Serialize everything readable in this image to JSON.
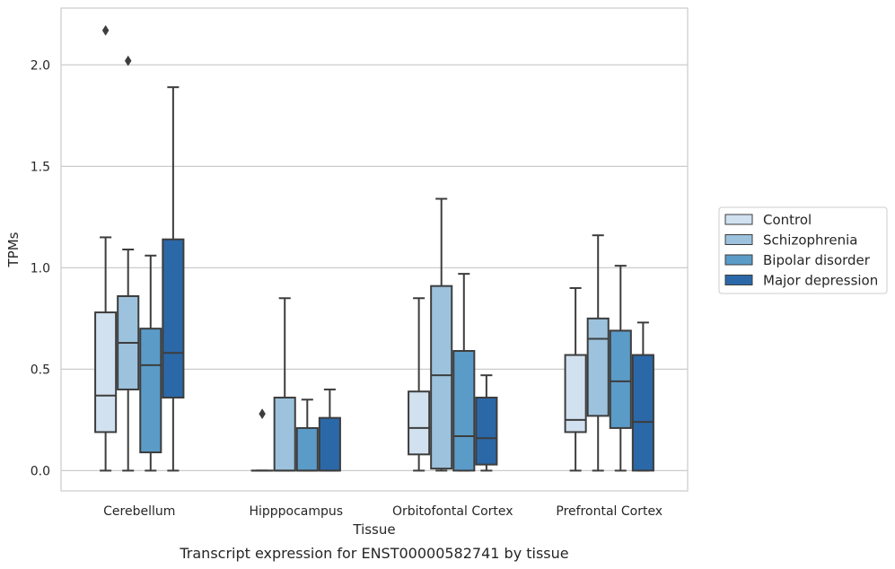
{
  "chart_data": {
    "type": "box",
    "title": "",
    "caption": "Transcript expression for ENST00000582741 by tissue",
    "xlabel": "Tissue",
    "ylabel": "TPMs",
    "ylim": [
      -0.1,
      2.28
    ],
    "yticks": [
      "0.0",
      "0.5",
      "1.0",
      "1.5",
      "2.0"
    ],
    "ytick_values": [
      0.0,
      0.5,
      1.0,
      1.5,
      2.0
    ],
    "grid": "horizontal",
    "legend_position": "right",
    "categories": [
      "Cerebellum",
      "Hipppocampus",
      "Orbitofontal Cortex",
      "Prefrontal Cortex"
    ],
    "series": [
      {
        "name": "Control",
        "color": "#d1e1f0",
        "boxes": [
          {
            "min": 0.0,
            "q1": 0.19,
            "median": 0.37,
            "q3": 0.78,
            "max": 1.15,
            "outliers": [
              2.17
            ]
          },
          {
            "min": 0.0,
            "q1": 0.0,
            "median": 0.0,
            "q3": 0.0,
            "max": 0.0,
            "outliers": [
              0.28
            ]
          },
          {
            "min": 0.0,
            "q1": 0.08,
            "median": 0.21,
            "q3": 0.39,
            "max": 0.85,
            "outliers": []
          },
          {
            "min": 0.0,
            "q1": 0.19,
            "median": 0.25,
            "q3": 0.57,
            "max": 0.9,
            "outliers": []
          }
        ]
      },
      {
        "name": "Schizophrenia",
        "color": "#9cc2dd",
        "boxes": [
          {
            "min": 0.0,
            "q1": 0.4,
            "median": 0.63,
            "q3": 0.86,
            "max": 1.09,
            "outliers": [
              2.02
            ]
          },
          {
            "min": 0.0,
            "q1": 0.0,
            "median": 0.0,
            "q3": 0.36,
            "max": 0.85,
            "outliers": []
          },
          {
            "min": 0.0,
            "q1": 0.01,
            "median": 0.47,
            "q3": 0.91,
            "max": 1.34,
            "outliers": []
          },
          {
            "min": 0.0,
            "q1": 0.27,
            "median": 0.65,
            "q3": 0.75,
            "max": 1.16,
            "outliers": []
          }
        ]
      },
      {
        "name": "Bipolar disorder",
        "color": "#5b9bc8",
        "boxes": [
          {
            "min": 0.0,
            "q1": 0.09,
            "median": 0.52,
            "q3": 0.7,
            "max": 1.06,
            "outliers": []
          },
          {
            "min": 0.0,
            "q1": 0.0,
            "median": 0.0,
            "q3": 0.21,
            "max": 0.35,
            "outliers": []
          },
          {
            "min": 0.0,
            "q1": 0.0,
            "median": 0.17,
            "q3": 0.59,
            "max": 0.97,
            "outliers": []
          },
          {
            "min": 0.0,
            "q1": 0.21,
            "median": 0.44,
            "q3": 0.69,
            "max": 1.01,
            "outliers": []
          }
        ]
      },
      {
        "name": "Major depression",
        "color": "#2b68a8",
        "boxes": [
          {
            "min": 0.0,
            "q1": 0.36,
            "median": 0.58,
            "q3": 1.14,
            "max": 1.89,
            "outliers": []
          },
          {
            "min": 0.0,
            "q1": 0.0,
            "median": 0.0,
            "q3": 0.26,
            "max": 0.4,
            "outliers": []
          },
          {
            "min": 0.0,
            "q1": 0.03,
            "median": 0.16,
            "q3": 0.36,
            "max": 0.47,
            "outliers": []
          },
          {
            "min": 0.0,
            "q1": 0.0,
            "median": 0.24,
            "q3": 0.57,
            "max": 0.73,
            "outliers": []
          }
        ]
      }
    ]
  }
}
